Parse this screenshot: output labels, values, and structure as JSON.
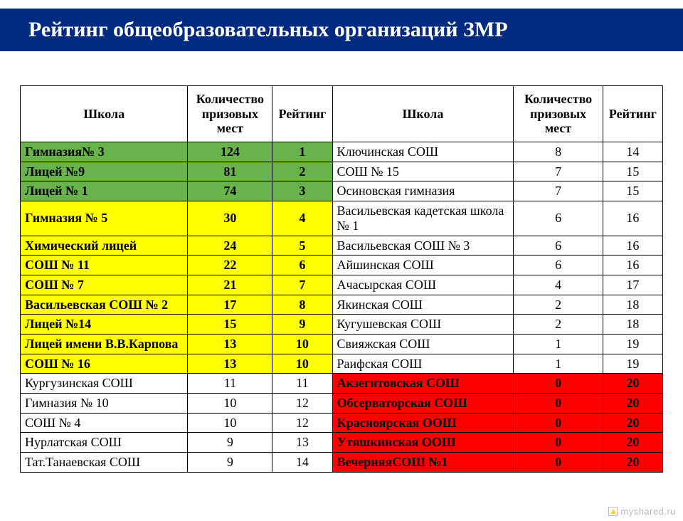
{
  "title": "Рейтинг общеобразовательных организаций ЗМР",
  "colors": {
    "title_band_bg": "#002b80",
    "title_text": "#ffffff",
    "green": "#69b34c",
    "yellow": "#ffff00",
    "red": "#ff0000",
    "border": "#000000"
  },
  "columns": {
    "school": "Школа",
    "count": "Количество призовых мест",
    "rating": "Рейтинг"
  },
  "rows": [
    {
      "l_school": "Гимназия№ 3",
      "l_count": "124",
      "l_rating": "1",
      "l_color": "g",
      "l_bold": true,
      "r_school": "Ключинская СОШ",
      "r_count": "8",
      "r_rating": "14",
      "r_color": "w",
      "r_bold": false
    },
    {
      "l_school": "Лицей  №9",
      "l_count": "81",
      "l_rating": "2",
      "l_color": "g",
      "l_bold": true,
      "r_school": "СОШ № 15",
      "r_count": "7",
      "r_rating": "15",
      "r_color": "w",
      "r_bold": false
    },
    {
      "l_school": "Лицей № 1",
      "l_count": "74",
      "l_rating": "3",
      "l_color": "g",
      "l_bold": true,
      "r_school": "Осиновская гимназия",
      "r_count": "7",
      "r_rating": "15",
      "r_color": "w",
      "r_bold": false
    },
    {
      "l_school": "Гимназия № 5",
      "l_count": "30",
      "l_rating": "4",
      "l_color": "y",
      "l_bold": true,
      "r_school": "Васильевская кадетская школа № 1",
      "r_count": "6",
      "r_rating": "16",
      "r_color": "w",
      "r_bold": false
    },
    {
      "l_school": "Химический лицей",
      "l_count": "24",
      "l_rating": "5",
      "l_color": "y",
      "l_bold": true,
      "r_school": "Васильевская СОШ № 3",
      "r_count": "6",
      "r_rating": "16",
      "r_color": "w",
      "r_bold": false
    },
    {
      "l_school": "СОШ № 11",
      "l_count": "22",
      "l_rating": "6",
      "l_color": "y",
      "l_bold": true,
      "r_school": "Айшинская СОШ",
      "r_count": "6",
      "r_rating": "16",
      "r_color": "w",
      "r_bold": false
    },
    {
      "l_school": "СОШ № 7",
      "l_count": "21",
      "l_rating": "7",
      "l_color": "y",
      "l_bold": true,
      "r_school": "Ачасырская СОШ",
      "r_count": "4",
      "r_rating": "17",
      "r_color": "w",
      "r_bold": false
    },
    {
      "l_school": "Васильевская СОШ № 2",
      "l_count": "17",
      "l_rating": "8",
      "l_color": "y",
      "l_bold": true,
      "r_school": "Якинская СОШ",
      "r_count": "2",
      "r_rating": "18",
      "r_color": "w",
      "r_bold": false
    },
    {
      "l_school": "Лицей №14",
      "l_count": "15",
      "l_rating": "9",
      "l_color": "y",
      "l_bold": true,
      "r_school": "Кугушевская СОШ",
      "r_count": "2",
      "r_rating": "18",
      "r_color": "w",
      "r_bold": false
    },
    {
      "l_school": "Лицей имени В.В.Карпова",
      "l_count": "13",
      "l_rating": "10",
      "l_color": "y",
      "l_bold": true,
      "r_school": "Свияжская СОШ",
      "r_count": "1",
      "r_rating": "19",
      "r_color": "w",
      "r_bold": false
    },
    {
      "l_school": "СОШ № 16",
      "l_count": "13",
      "l_rating": "10",
      "l_color": "y",
      "l_bold": true,
      "r_school": "Раифская СОШ",
      "r_count": "1",
      "r_rating": "19",
      "r_color": "w",
      "r_bold": false
    },
    {
      "l_school": "Кургузинская СОШ",
      "l_count": "11",
      "l_rating": "11",
      "l_color": "w",
      "l_bold": false,
      "r_school": "Акзегитовская СОШ",
      "r_count": "0",
      "r_rating": "20",
      "r_color": "r",
      "r_bold": true
    },
    {
      "l_school": "Гимназия № 10",
      "l_count": "10",
      "l_rating": "12",
      "l_color": "w",
      "l_bold": false,
      "r_school": "Обсерваторская СОШ",
      "r_count": "0",
      "r_rating": "20",
      "r_color": "r",
      "r_bold": true
    },
    {
      "l_school": "СОШ № 4",
      "l_count": "10",
      "l_rating": "12",
      "l_color": "w",
      "l_bold": false,
      "r_school": "Красноярская ООШ",
      "r_count": "0",
      "r_rating": "20",
      "r_color": "r",
      "r_bold": true
    },
    {
      "l_school": "Нурлатская СОШ",
      "l_count": "9",
      "l_rating": "13",
      "l_color": "w",
      "l_bold": false,
      "r_school": "Утяшкинская ООШ",
      "r_count": "0",
      "r_rating": "20",
      "r_color": "r",
      "r_bold": true
    },
    {
      "l_school": "Тат.Танаевская СОШ",
      "l_count": "9",
      "l_rating": "14",
      "l_color": "w",
      "l_bold": false,
      "r_school": "ВечерняяСОШ №1",
      "r_count": "0",
      "r_rating": "20",
      "r_color": "r",
      "r_bold": true
    }
  ],
  "watermark": "myshared.ru"
}
